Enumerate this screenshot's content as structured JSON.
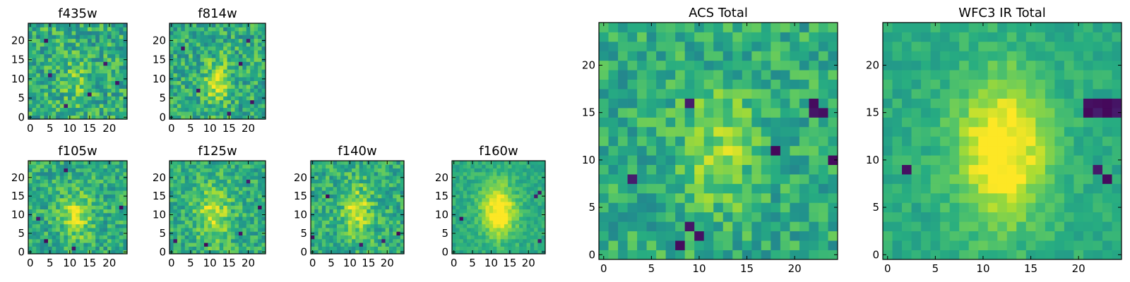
{
  "chart_data": [
    {
      "type": "heatmap",
      "title": "f435w",
      "xlim": [
        0,
        24
      ],
      "ylim": [
        0,
        24
      ],
      "xticks": [
        0,
        5,
        10,
        15,
        20
      ],
      "yticks": [
        0,
        5,
        10,
        15,
        20
      ],
      "tick_labels": [
        "0",
        "5",
        "10",
        "15",
        "20"
      ],
      "colormap": "viridis",
      "grid_size": [
        25,
        25
      ],
      "source_position": [
        12,
        10
      ],
      "source_width": 3.0,
      "source_peak": 0.12,
      "noise": 0.34,
      "dark_pixels": [
        [
          19,
          14
        ],
        [
          5,
          11
        ],
        [
          9,
          3
        ],
        [
          22,
          9
        ],
        [
          4,
          20
        ],
        [
          15,
          6
        ]
      ]
    },
    {
      "type": "heatmap",
      "title": "f814w",
      "xlim": [
        0,
        24
      ],
      "ylim": [
        0,
        24
      ],
      "xticks": [
        0,
        5,
        10,
        15,
        20
      ],
      "yticks": [
        0,
        5,
        10,
        15,
        20
      ],
      "tick_labels": [
        "0",
        "5",
        "10",
        "15",
        "20"
      ],
      "colormap": "viridis",
      "grid_size": [
        25,
        25
      ],
      "source_position": [
        12,
        9
      ],
      "source_width": 2.5,
      "source_peak": 0.28,
      "noise": 0.32,
      "dark_pixels": [
        [
          18,
          14
        ],
        [
          3,
          18
        ],
        [
          21,
          4
        ],
        [
          7,
          7
        ],
        [
          15,
          1
        ],
        [
          20,
          20
        ]
      ]
    },
    {
      "type": "heatmap",
      "title": "f105w",
      "xlim": [
        0,
        24
      ],
      "ylim": [
        0,
        24
      ],
      "xticks": [
        0,
        5,
        10,
        15,
        20
      ],
      "yticks": [
        0,
        5,
        10,
        15,
        20
      ],
      "tick_labels": [
        "0",
        "5",
        "10",
        "15",
        "20"
      ],
      "colormap": "viridis",
      "grid_size": [
        25,
        25
      ],
      "source_position": [
        12,
        10
      ],
      "source_width": 2.8,
      "source_peak": 0.28,
      "noise": 0.28,
      "dark_pixels": [
        [
          23,
          12
        ],
        [
          2,
          9
        ],
        [
          11,
          1
        ],
        [
          9,
          22
        ],
        [
          4,
          3
        ]
      ]
    },
    {
      "type": "heatmap",
      "title": "f125w",
      "xlim": [
        0,
        24
      ],
      "ylim": [
        0,
        24
      ],
      "xticks": [
        0,
        5,
        10,
        15,
        20
      ],
      "yticks": [
        0,
        5,
        10,
        15,
        20
      ],
      "tick_labels": [
        "0",
        "5",
        "10",
        "15",
        "20"
      ],
      "colormap": "viridis",
      "grid_size": [
        25,
        25
      ],
      "source_position": [
        11,
        10
      ],
      "source_width": 3.2,
      "source_peak": 0.3,
      "noise": 0.26,
      "dark_pixels": [
        [
          18,
          5
        ],
        [
          1,
          3
        ],
        [
          20,
          19
        ],
        [
          9,
          2
        ],
        [
          23,
          12
        ]
      ]
    },
    {
      "type": "heatmap",
      "title": "f140w",
      "xlim": [
        0,
        24
      ],
      "ylim": [
        0,
        24
      ],
      "xticks": [
        0,
        5,
        10,
        15,
        20
      ],
      "yticks": [
        0,
        5,
        10,
        15,
        20
      ],
      "tick_labels": [
        "0",
        "5",
        "10",
        "15",
        "20"
      ],
      "colormap": "viridis",
      "grid_size": [
        25,
        25
      ],
      "source_position": [
        12,
        11
      ],
      "source_width": 3.0,
      "source_peak": 0.28,
      "noise": 0.28,
      "dark_pixels": [
        [
          23,
          5
        ],
        [
          19,
          3
        ],
        [
          4,
          15
        ],
        [
          0,
          4
        ],
        [
          13,
          2
        ]
      ]
    },
    {
      "type": "heatmap",
      "title": "f160w",
      "xlim": [
        0,
        24
      ],
      "ylim": [
        0,
        24
      ],
      "xticks": [
        0,
        5,
        10,
        15,
        20
      ],
      "yticks": [
        0,
        5,
        10,
        15,
        20
      ],
      "tick_labels": [
        "0",
        "5",
        "10",
        "15",
        "20"
      ],
      "colormap": "viridis",
      "grid_size": [
        25,
        25
      ],
      "source_position": [
        12,
        11
      ],
      "source_width": 3.2,
      "source_peak": 0.45,
      "noise": 0.16,
      "dark_pixels": [
        [
          22,
          15
        ],
        [
          23,
          16
        ],
        [
          2,
          9
        ],
        [
          23,
          3
        ]
      ]
    },
    {
      "type": "heatmap",
      "title": "ACS Total",
      "xlim": [
        0,
        24
      ],
      "ylim": [
        0,
        24
      ],
      "xticks": [
        0,
        5,
        10,
        15,
        20
      ],
      "yticks": [
        0,
        5,
        10,
        15,
        20
      ],
      "tick_labels": [
        "0",
        "5",
        "10",
        "15",
        "20"
      ],
      "colormap": "viridis",
      "grid_size": [
        25,
        25
      ],
      "source_position": [
        12,
        11
      ],
      "source_width": 2.8,
      "source_peak": 0.22,
      "noise": 0.26,
      "dark_pixels": [
        [
          9,
          16
        ],
        [
          22,
          15
        ],
        [
          22,
          16
        ],
        [
          23,
          15
        ],
        [
          18,
          11
        ],
        [
          3,
          8
        ],
        [
          24,
          10
        ],
        [
          8,
          1
        ],
        [
          10,
          2
        ],
        [
          9,
          3
        ]
      ]
    },
    {
      "type": "heatmap",
      "title": "WFC3 IR Total",
      "xlim": [
        0,
        24
      ],
      "ylim": [
        0,
        24
      ],
      "xticks": [
        0,
        5,
        10,
        15,
        20
      ],
      "yticks": [
        0,
        5,
        10,
        15,
        20
      ],
      "tick_labels": [
        "0",
        "5",
        "10",
        "15",
        "20"
      ],
      "colormap": "viridis",
      "grid_size": [
        25,
        25
      ],
      "source_position": [
        12,
        11
      ],
      "source_width": 3.4,
      "source_peak": 0.45,
      "noise": 0.13,
      "dark_pixels": [
        [
          21,
          15
        ],
        [
          22,
          15
        ],
        [
          23,
          15
        ],
        [
          24,
          15
        ],
        [
          21,
          16
        ],
        [
          22,
          16
        ],
        [
          23,
          16
        ],
        [
          24,
          16
        ],
        [
          2,
          9
        ],
        [
          22,
          9
        ],
        [
          23,
          8
        ]
      ]
    }
  ]
}
